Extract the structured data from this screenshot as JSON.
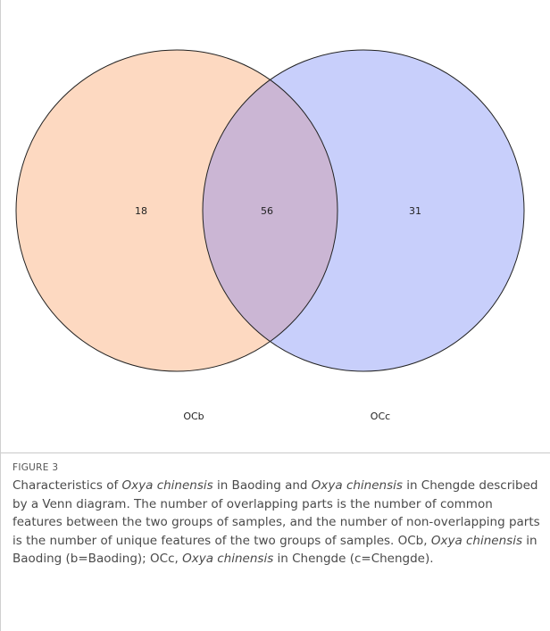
{
  "venn": {
    "sets": [
      {
        "label": "OCb",
        "color": "#fdd9c1"
      },
      {
        "label": "OCc",
        "color": "#c8cffb"
      }
    ],
    "overlap_color": "#cbb6d4",
    "counts": {
      "only_left": "18",
      "intersection": "56",
      "only_right": "31"
    }
  },
  "figure": {
    "label": "FIGURE 3",
    "caption": {
      "p1": "Characteristics of ",
      "species": "Oxya chinensis",
      "p2": " in Baoding and ",
      "p3": " in Chengde described by a Venn diagram. The number of overlapping parts is the number of common features between the two groups of samples, and the number of non-overlapping parts is the number of unique features of the two groups of samples. OCb, ",
      "p4": " in Baoding (b=Baoding); OCc, ",
      "p5": " in Chengde (c=Chengde)."
    }
  }
}
